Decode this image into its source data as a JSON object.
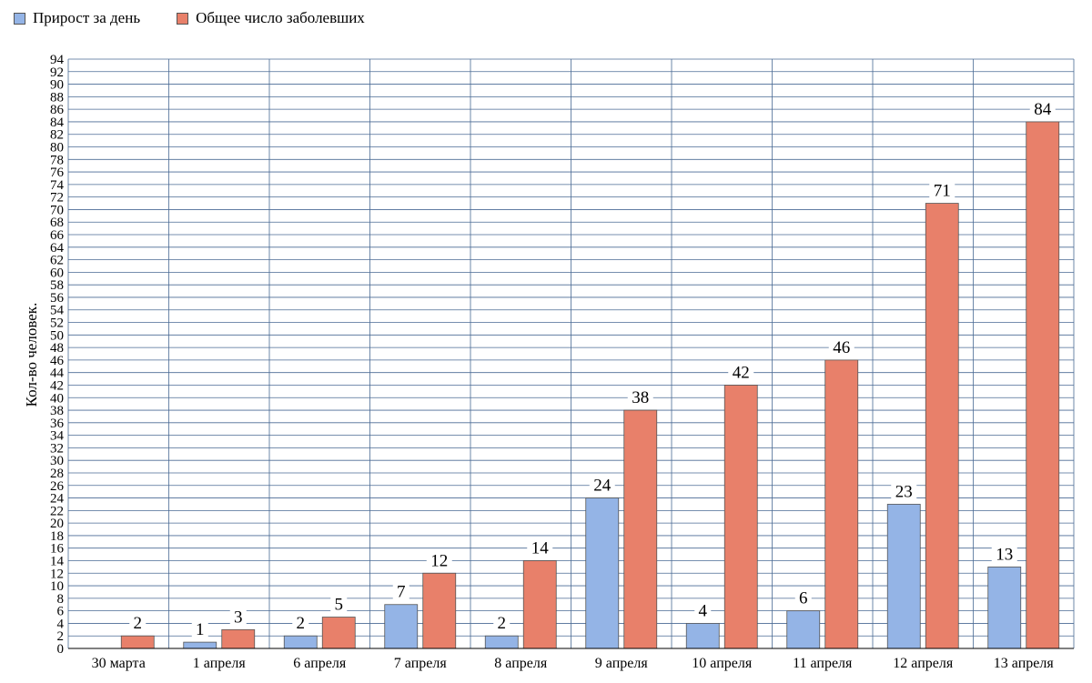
{
  "chart_data": {
    "type": "bar",
    "title": "",
    "xlabel": "",
    "ylabel": "Кол-во человек.",
    "ylim": [
      0,
      94
    ],
    "ytick_step": 2,
    "grid": true,
    "legend_position": "top-left",
    "categories": [
      "30 марта",
      "1 апреля",
      "6 апреля",
      "7 апреля",
      "8 апреля",
      "9 апреля",
      "10 апреля",
      "11 апреля",
      "12 апреля",
      "13 апреля"
    ],
    "series": [
      {
        "name": "Прирост за день",
        "color": "#94b4e6",
        "values": [
          null,
          1,
          2,
          7,
          2,
          24,
          4,
          6,
          23,
          13
        ]
      },
      {
        "name": "Общее число заболевших",
        "color": "#e8806a",
        "values": [
          2,
          3,
          5,
          12,
          14,
          38,
          42,
          46,
          71,
          84
        ]
      }
    ]
  }
}
